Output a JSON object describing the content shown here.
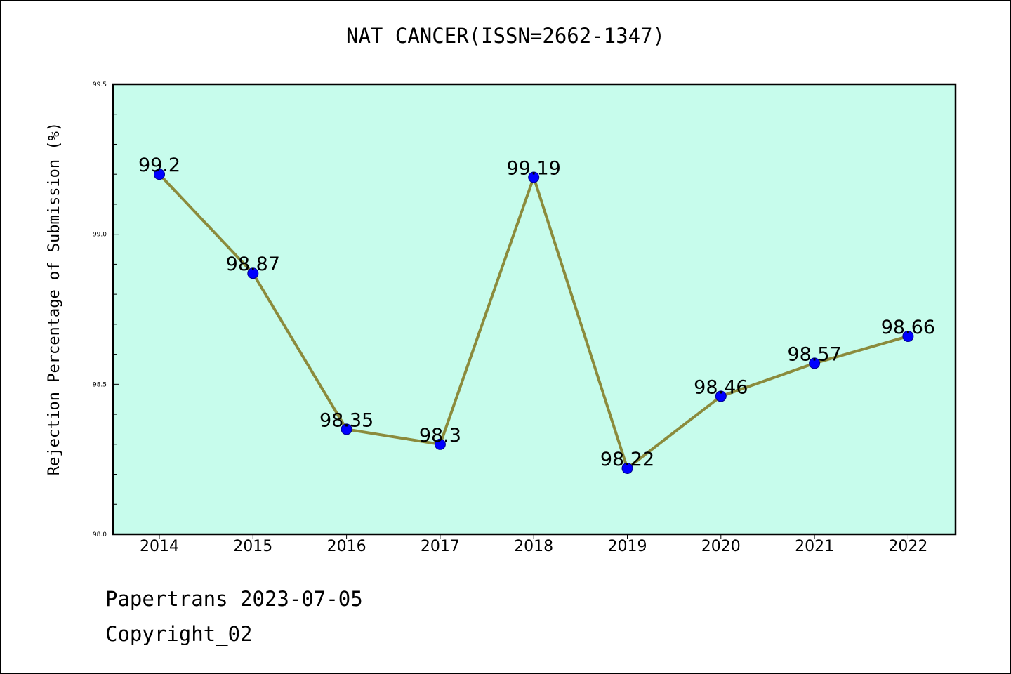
{
  "chart_data": {
    "type": "line",
    "title": "NAT CANCER(ISSN=2662-1347)",
    "xlabel": "",
    "ylabel": "Rejection Percentage of Submission (%)",
    "categories": [
      "2014",
      "2015",
      "2016",
      "2017",
      "2018",
      "2019",
      "2020",
      "2021",
      "2022"
    ],
    "series": [
      {
        "values": [
          99.2,
          98.87,
          98.35,
          98.3,
          99.19,
          98.22,
          98.46,
          98.57,
          98.66
        ],
        "labels": [
          "99.2",
          "98.87",
          "98.35",
          "98.3",
          "99.19",
          "98.22",
          "98.46",
          "98.57",
          "98.66"
        ]
      }
    ],
    "ylim": [
      98.0,
      99.5
    ],
    "yticks": [
      "98.0",
      "98.5",
      "99.0",
      "99.5"
    ],
    "grid": false,
    "colors": {
      "plot_background": "#c7fcec",
      "line": "#8b8b3c",
      "marker": "#0000ff",
      "marker_edge": "#00008b"
    }
  },
  "footer": {
    "line1": "Papertrans 2023-07-05",
    "line2": "Copyright_02"
  }
}
